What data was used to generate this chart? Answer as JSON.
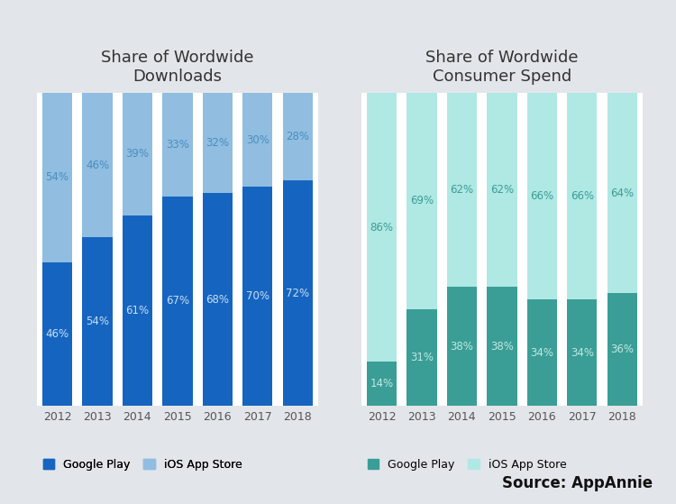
{
  "years": [
    "2012",
    "2013",
    "2014",
    "2015",
    "2016",
    "2017",
    "2018"
  ],
  "downloads": {
    "google_play": [
      46,
      54,
      61,
      67,
      68,
      70,
      72
    ],
    "ios_store": [
      54,
      46,
      39,
      33,
      32,
      30,
      28
    ]
  },
  "consumer_spend": {
    "google_play": [
      14,
      31,
      38,
      38,
      34,
      34,
      36
    ],
    "ios_store": [
      86,
      69,
      62,
      62,
      66,
      66,
      64
    ]
  },
  "downloads_title": "Share of Wordwide\nDownloads",
  "spend_title": "Share of Wordwide\nConsumer Spend",
  "source_text": "Source: AppAnnie",
  "bg_color": "#e2e6ea",
  "chart_bg_color": "#ffffff",
  "downloads_gplay_color": "#1565c0",
  "downloads_ios_color": "#90bde0",
  "spend_gplay_color": "#3a9e96",
  "spend_ios_color": "#b0e8e4",
  "dl_gplay_label_color": "#c8ddf0",
  "dl_ios_label_color": "#4a8fc0",
  "sp_gplay_label_color": "#c0e8e4",
  "sp_ios_label_color": "#3a9e96",
  "legend_gplay_downloads": "Google Play",
  "legend_ios_downloads": "iOS App Store",
  "legend_gplay_spend": "Google Play",
  "legend_ios_spend": "iOS App Store",
  "year_label_color": "#555555",
  "title_color": "#333333"
}
